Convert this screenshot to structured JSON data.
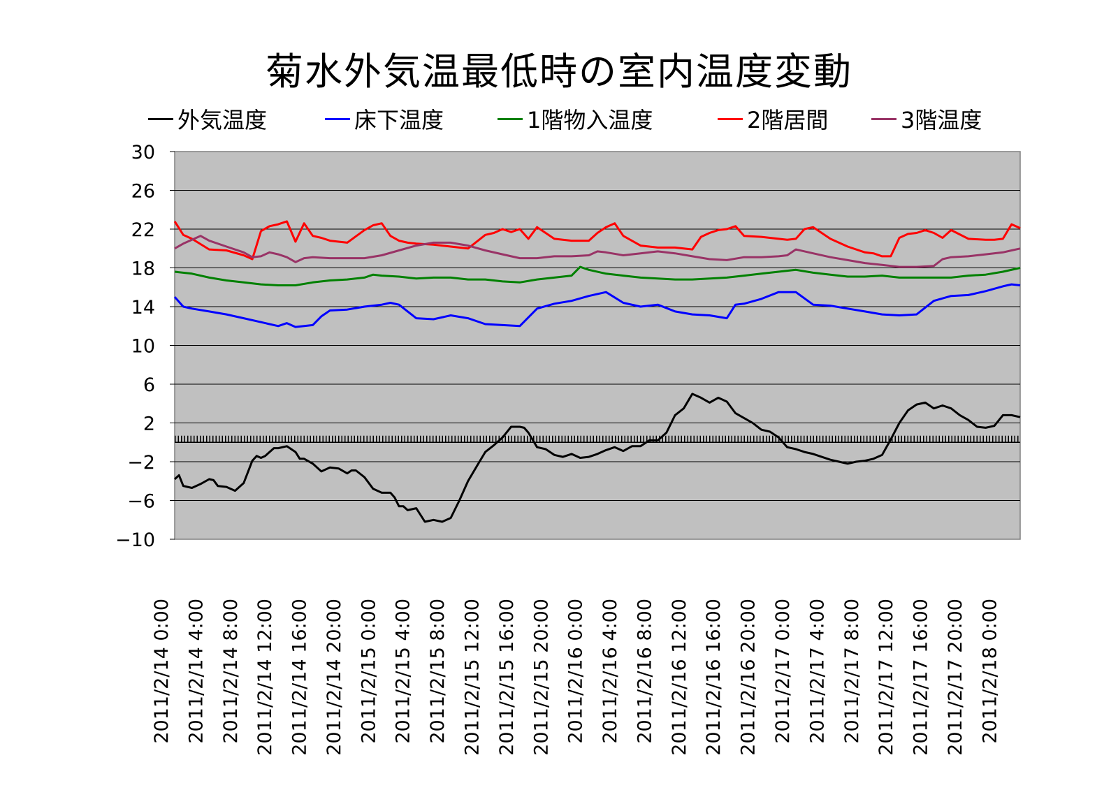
{
  "chart_data": {
    "type": "line",
    "title": "菊水外気温最低時の室内温度変動",
    "xlabel": "",
    "ylabel": "",
    "ylim": [
      -10,
      30
    ],
    "yticks": [
      -10,
      -6,
      -2,
      2,
      6,
      10,
      14,
      18,
      22,
      26,
      30
    ],
    "ytick_labels": [
      "−10",
      "−6",
      "−2",
      "2",
      "6",
      "10",
      "14",
      "18",
      "22",
      "26",
      "30"
    ],
    "grid": true,
    "legend_position": "top",
    "zero_line": true,
    "x_range_hours": [
      0,
      98
    ],
    "x_tick_labels": [
      "2011/2/14 0:00",
      "2011/2/14 4:00",
      "2011/2/14 8:00",
      "2011/2/14 12:00",
      "2011/2/14 16:00",
      "2011/2/14 20:00",
      "2011/2/15 0:00",
      "2011/2/15 4:00",
      "2011/2/15 8:00",
      "2011/2/15 12:00",
      "2011/2/15 16:00",
      "2011/2/15 20:00",
      "2011/2/16 0:00",
      "2011/2/16 4:00",
      "2011/2/16 8:00",
      "2011/2/16 12:00",
      "2011/2/16 16:00",
      "2011/2/16 20:00",
      "2011/2/17 0:00",
      "2011/2/17 4:00",
      "2011/2/17 8:00",
      "2011/2/17 12:00",
      "2011/2/17 16:00",
      "2011/2/17 20:00",
      "2011/2/18 0:00"
    ],
    "x_tick_hours": [
      0,
      4,
      8,
      12,
      16,
      20,
      24,
      28,
      32,
      36,
      40,
      44,
      48,
      52,
      56,
      60,
      64,
      68,
      72,
      76,
      80,
      84,
      88,
      92,
      96
    ],
    "series": [
      {
        "name": "外気温度",
        "color": "#000000",
        "x": [
          0,
          0.5,
          1,
          1.5,
          2,
          3,
          4,
          4.5,
          5,
          6,
          7,
          8,
          9,
          9.5,
          10,
          10.5,
          11,
          11.5,
          12,
          13,
          14,
          14.5,
          15,
          16,
          17,
          18,
          19,
          20,
          20.5,
          21,
          22,
          23,
          24,
          25,
          25.5,
          26,
          26.5,
          27,
          28,
          29,
          30,
          31,
          32,
          33,
          34,
          35,
          36,
          37,
          38,
          39,
          40,
          40.5,
          41,
          42,
          43,
          44,
          45,
          46,
          47,
          48,
          49,
          50,
          51,
          52,
          53,
          54,
          55,
          56,
          57,
          58,
          59,
          60,
          61,
          62,
          63,
          64,
          65,
          66,
          67,
          68,
          69,
          70,
          71,
          72,
          73,
          74,
          75,
          76,
          77,
          78,
          79,
          80,
          81,
          82,
          83,
          84,
          85,
          86,
          87,
          88,
          89,
          90,
          91,
          92,
          93,
          94,
          95,
          96,
          97,
          98
        ],
        "values": [
          -3.8,
          -3.4,
          -4.5,
          -4.6,
          -4.7,
          -4.3,
          -3.8,
          -3.9,
          -4.5,
          -4.6,
          -5,
          -4.2,
          -1.9,
          -1.4,
          -1.6,
          -1.4,
          -1,
          -0.6,
          -0.6,
          -0.4,
          -1,
          -1.7,
          -1.7,
          -2.2,
          -3,
          -2.6,
          -2.7,
          -3.2,
          -2.9,
          -2.9,
          -3.6,
          -4.8,
          -5.2,
          -5.2,
          -5.7,
          -6.6,
          -6.6,
          -7,
          -6.8,
          -8.2,
          -8,
          -8.2,
          -7.8,
          -6,
          -4,
          -2.5,
          -1,
          -0.3,
          0.5,
          1.6,
          1.6,
          1.5,
          1,
          -0.5,
          -0.7,
          -1.3,
          -1.5,
          -1.2,
          -1.6,
          -1.5,
          -1.2,
          -0.8,
          -0.5,
          -0.9,
          -0.4,
          -0.4,
          0.2,
          0.2,
          1,
          2.8,
          3.5,
          5,
          4.6,
          4.1,
          4.6,
          4.2,
          3,
          2.5,
          2,
          1.3,
          1.1,
          0.5,
          -0.5,
          -0.7,
          -1,
          -1.2,
          -1.5,
          -1.8,
          -2,
          -2.2,
          -2,
          -1.9,
          -1.7,
          -1.3,
          0.3,
          2,
          3.3,
          3.9,
          4.1,
          3.5,
          3.8,
          3.5,
          2.8,
          2.3,
          1.6,
          1.5,
          1.7,
          2.8,
          2.8,
          2.6
        ]
      },
      {
        "name": "床下温度",
        "color": "#0000ff",
        "x": [
          0,
          1,
          2,
          4,
          6,
          8,
          10,
          12,
          13,
          14,
          16,
          17,
          18,
          20,
          22,
          24,
          25,
          26,
          28,
          30,
          32,
          34,
          36,
          38,
          40,
          42,
          44,
          46,
          48,
          50,
          52,
          54,
          56,
          58,
          60,
          62,
          64,
          65,
          66,
          68,
          70,
          72,
          74,
          76,
          78,
          80,
          82,
          84,
          86,
          88,
          90,
          92,
          94,
          96,
          97,
          98
        ],
        "values": [
          15,
          14,
          13.8,
          13.5,
          13.2,
          12.8,
          12.4,
          12,
          12.3,
          11.9,
          12.1,
          13,
          13.6,
          13.7,
          14,
          14.2,
          14.4,
          14.2,
          12.8,
          12.7,
          13.1,
          12.8,
          12.2,
          12.1,
          12,
          13.8,
          14.3,
          14.6,
          15.1,
          15.5,
          14.4,
          14,
          14.2,
          13.5,
          13.2,
          13.1,
          12.8,
          14.2,
          14.3,
          14.8,
          15.5,
          15.5,
          14.2,
          14.1,
          13.8,
          13.5,
          13.2,
          13.1,
          13.2,
          14.6,
          15.1,
          15.2,
          15.6,
          16.1,
          16.3,
          16.2
        ]
      },
      {
        "name": "1階物入温度",
        "color": "#008000",
        "x": [
          0,
          2,
          4,
          6,
          8,
          10,
          12,
          14,
          16,
          18,
          20,
          22,
          23,
          24,
          26,
          28,
          30,
          32,
          34,
          36,
          38,
          40,
          42,
          44,
          46,
          47,
          48,
          50,
          52,
          54,
          56,
          58,
          60,
          62,
          64,
          66,
          68,
          70,
          72,
          74,
          76,
          78,
          80,
          82,
          84,
          86,
          88,
          90,
          92,
          94,
          96,
          98
        ],
        "values": [
          17.6,
          17.4,
          17,
          16.7,
          16.5,
          16.3,
          16.2,
          16.2,
          16.5,
          16.7,
          16.8,
          17,
          17.3,
          17.2,
          17.1,
          16.9,
          17,
          17,
          16.8,
          16.8,
          16.6,
          16.5,
          16.8,
          17,
          17.2,
          18.1,
          17.8,
          17.4,
          17.2,
          17,
          16.9,
          16.8,
          16.8,
          16.9,
          17,
          17.2,
          17.4,
          17.6,
          17.8,
          17.5,
          17.3,
          17.1,
          17.1,
          17.2,
          17,
          17,
          17,
          17,
          17.2,
          17.3,
          17.6,
          18
        ]
      },
      {
        "name": "2階居間",
        "color": "#ff0000",
        "x": [
          0,
          1,
          2,
          4,
          6,
          8,
          9,
          10,
          11,
          12,
          13,
          14,
          15,
          16,
          17,
          18,
          20,
          22,
          23,
          24,
          25,
          26,
          27,
          28,
          30,
          32,
          34,
          36,
          37,
          38,
          39,
          40,
          41,
          42,
          44,
          46,
          48,
          49,
          50,
          51,
          52,
          54,
          56,
          58,
          60,
          61,
          62,
          63,
          64,
          65,
          66,
          68,
          70,
          71,
          72,
          73,
          74,
          76,
          78,
          80,
          81,
          82,
          83,
          84,
          85,
          86,
          87,
          88,
          89,
          90,
          92,
          94,
          95,
          96,
          97,
          98
        ],
        "values": [
          22.8,
          21.4,
          21,
          19.9,
          19.8,
          19.3,
          18.9,
          21.8,
          22.3,
          22.5,
          22.8,
          20.7,
          22.6,
          21.3,
          21.1,
          20.8,
          20.6,
          21.9,
          22.4,
          22.6,
          21.3,
          20.8,
          20.6,
          20.5,
          20.4,
          20.2,
          20,
          21.4,
          21.6,
          22,
          21.7,
          22,
          21,
          22.2,
          21,
          20.8,
          20.8,
          21.6,
          22.2,
          22.6,
          21.3,
          20.3,
          20.1,
          20.1,
          19.9,
          21.2,
          21.6,
          21.9,
          22,
          22.3,
          21.3,
          21.2,
          21,
          20.9,
          21,
          22,
          22.2,
          21,
          20.2,
          19.6,
          19.5,
          19.2,
          19.2,
          21.1,
          21.5,
          21.6,
          21.9,
          21.6,
          21.1,
          21.9,
          21,
          20.9,
          20.9,
          21,
          22.5,
          22.1
        ]
      },
      {
        "name": "3階温度",
        "color": "#993366",
        "x": [
          0,
          1,
          2,
          3,
          4,
          6,
          8,
          9,
          10,
          11,
          12,
          13,
          14,
          15,
          16,
          18,
          20,
          22,
          24,
          26,
          28,
          30,
          32,
          34,
          36,
          38,
          40,
          42,
          44,
          46,
          48,
          49,
          50,
          52,
          54,
          56,
          58,
          60,
          62,
          64,
          66,
          68,
          70,
          71,
          72,
          74,
          76,
          78,
          80,
          82,
          84,
          86,
          88,
          89,
          90,
          92,
          94,
          96,
          97,
          98
        ],
        "values": [
          20,
          20.5,
          20.9,
          21.3,
          20.8,
          20.2,
          19.6,
          19.1,
          19.2,
          19.6,
          19.4,
          19.1,
          18.6,
          19,
          19.1,
          19,
          19,
          19,
          19.3,
          19.8,
          20.3,
          20.6,
          20.6,
          20.3,
          19.8,
          19.4,
          19,
          19,
          19.2,
          19.2,
          19.3,
          19.7,
          19.6,
          19.3,
          19.5,
          19.7,
          19.5,
          19.2,
          18.9,
          18.8,
          19.1,
          19.1,
          19.2,
          19.3,
          19.9,
          19.5,
          19.1,
          18.8,
          18.5,
          18.3,
          18.1,
          18.1,
          18.2,
          18.9,
          19.1,
          19.2,
          19.4,
          19.6,
          19.8,
          20
        ]
      }
    ]
  }
}
